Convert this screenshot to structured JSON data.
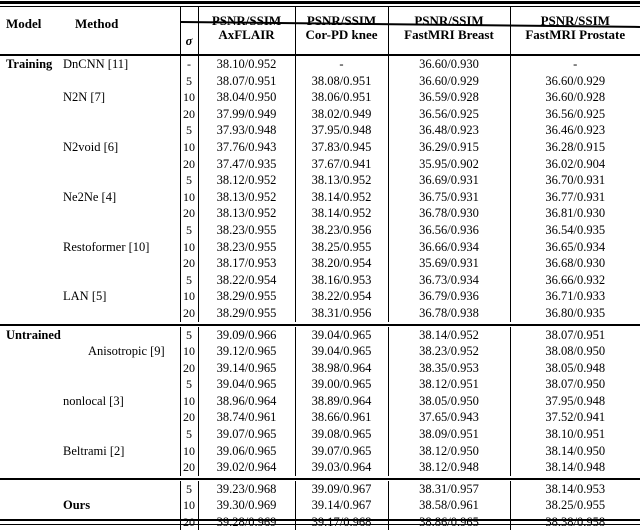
{
  "header": {
    "model": "Model",
    "method": "Method",
    "sigma": "σ",
    "metric": "PSNR/SSIM",
    "datasets": [
      "AxFLAIR",
      "Cor-PD knee",
      "FastMRI Breast",
      "FastMRI Prostate"
    ]
  },
  "accent_colors": {
    "text": "#000000",
    "background": "#ffffff",
    "rule": "#000000"
  },
  "sections": [
    {
      "name": "Training",
      "rows": [
        {
          "model": "Training",
          "method": "DnCNN [11]",
          "sigma": "-",
          "values": [
            "38.10/0.952",
            "-",
            "36.60/0.930",
            "-"
          ]
        },
        {
          "model": "",
          "method": "",
          "sigma": "5",
          "values": [
            "38.07/0.951",
            "38.08/0.951",
            "36.60/0.929",
            "36.60/0.929"
          ]
        },
        {
          "model": "",
          "method": "N2N [7]",
          "sigma": "10",
          "values": [
            "38.04/0.950",
            "38.06/0.951",
            "36.59/0.928",
            "36.60/0.928"
          ]
        },
        {
          "model": "",
          "method": "",
          "sigma": "20",
          "values": [
            "37.99/0.949",
            "38.02/0.949",
            "36.56/0.925",
            "36.56/0.925"
          ]
        },
        {
          "model": "",
          "method": "",
          "sigma": "5",
          "values": [
            "37.93/0.948",
            "37.95/0.948",
            "36.48/0.923",
            "36.46/0.923"
          ]
        },
        {
          "model": "",
          "method": "N2void [6]",
          "sigma": "10",
          "values": [
            "37.76/0.943",
            "37.83/0.945",
            "36.29/0.915",
            "36.28/0.915"
          ]
        },
        {
          "model": "",
          "method": "",
          "sigma": "20",
          "values": [
            "37.47/0.935",
            "37.67/0.941",
            "35.95/0.902",
            "36.02/0.904"
          ]
        },
        {
          "model": "",
          "method": "",
          "sigma": "5",
          "values": [
            "38.12/0.952",
            "38.13/0.952",
            "36.69/0.931",
            "36.70/0.931"
          ]
        },
        {
          "model": "",
          "method": "Ne2Ne [4]",
          "sigma": "10",
          "values": [
            "38.13/0.952",
            "38.14/0.952",
            "36.75/0.931",
            "36.77/0.931"
          ]
        },
        {
          "model": "",
          "method": "",
          "sigma": "20",
          "values": [
            "38.13/0.952",
            "38.14/0.952",
            "36.78/0.930",
            "36.81/0.930"
          ]
        },
        {
          "model": "",
          "method": "",
          "sigma": "5",
          "values": [
            "38.23/0.955",
            "38.23/0.956",
            "36.56/0.936",
            "36.54/0.935"
          ]
        },
        {
          "model": "",
          "method": "Restoformer [10]",
          "sigma": "10",
          "values": [
            "38.23/0.955",
            "38.25/0.955",
            "36.66/0.934",
            "36.65/0.934"
          ]
        },
        {
          "model": "",
          "method": "",
          "sigma": "20",
          "values": [
            "38.17/0.953",
            "38.20/0.954",
            "35.69/0.931",
            "36.68/0.930"
          ]
        },
        {
          "model": "",
          "method": "",
          "sigma": "5",
          "values": [
            "38.22/0.954",
            "38.16/0.953",
            "36.73/0.934",
            "36.66/0.932"
          ]
        },
        {
          "model": "",
          "method": "LAN [5]",
          "sigma": "10",
          "values": [
            "38.29/0.955",
            "38.22/0.954",
            "36.79/0.936",
            "36.71/0.933"
          ]
        },
        {
          "model": "",
          "method": "",
          "sigma": "20",
          "values": [
            "38.29/0.955",
            "38.31/0.956",
            "36.78/0.938",
            "36.80/0.935"
          ]
        }
      ]
    },
    {
      "name": "Untrained",
      "rows": [
        {
          "model": "Untrained",
          "method": "",
          "sigma": "5",
          "values": [
            "39.09/0.966",
            "39.04/0.965",
            "38.14/0.952",
            "38.07/0.951"
          ]
        },
        {
          "model": "",
          "method": "Anisotropic [9]",
          "method_indent": true,
          "sigma": "10",
          "values": [
            "39.12/0.965",
            "39.04/0.965",
            "38.23/0.952",
            "38.08/0.950"
          ]
        },
        {
          "model": "",
          "method": "",
          "sigma": "20",
          "values": [
            "39.14/0.965",
            "38.98/0.964",
            "38.35/0.953",
            "38.05/0.948"
          ]
        },
        {
          "model": "",
          "method": "",
          "sigma": "5",
          "values": [
            "39.04/0.965",
            "39.00/0.965",
            "38.12/0.951",
            "38.07/0.950"
          ]
        },
        {
          "model": "",
          "method": "nonlocal [3]",
          "sigma": "10",
          "values": [
            "38.96/0.964",
            "38.89/0.964",
            "38.05/0.950",
            "37.95/0.948"
          ]
        },
        {
          "model": "",
          "method": "",
          "sigma": "20",
          "values": [
            "38.74/0.961",
            "38.66/0.961",
            "37.65/0.943",
            "37.52/0.941"
          ]
        },
        {
          "model": "",
          "method": "",
          "sigma": "5",
          "values": [
            "39.07/0.965",
            "39.08/0.965",
            "38.09/0.951",
            "38.10/0.951"
          ]
        },
        {
          "model": "",
          "method": "Beltrami [2]",
          "sigma": "10",
          "values": [
            "39.06/0.965",
            "39.07/0.965",
            "38.12/0.950",
            "38.14/0.950"
          ]
        },
        {
          "model": "",
          "method": "",
          "sigma": "20",
          "values": [
            "39.02/0.964",
            "39.03/0.964",
            "38.12/0.948",
            "38.14/0.948"
          ]
        }
      ]
    },
    {
      "name": "Ours",
      "rows": [
        {
          "model": "",
          "method": "",
          "sigma": "5",
          "values": [
            "39.23/0.968",
            "39.09/0.967",
            "38.31/0.957",
            "38.14/0.953"
          ]
        },
        {
          "model": "",
          "method": "Ours",
          "method_bold": true,
          "sigma": "10",
          "values": [
            "39.30/0.969",
            "39.14/0.967",
            "38.58/0.961",
            "38.25/0.955"
          ]
        },
        {
          "model": "",
          "method": "",
          "sigma": "20",
          "values": [
            "39.28/0.969",
            "39.17/0.968",
            "38.86/0.965",
            "38.38/0.958"
          ]
        }
      ]
    }
  ]
}
